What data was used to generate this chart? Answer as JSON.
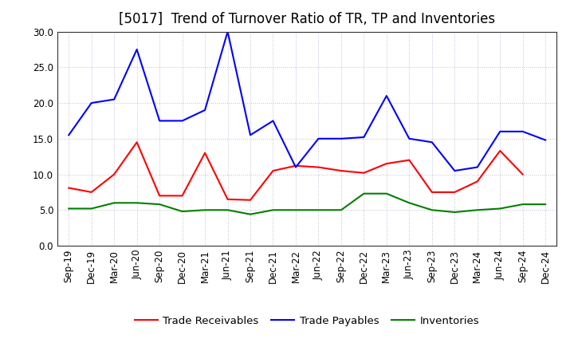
{
  "title": "[5017]  Trend of Turnover Ratio of TR, TP and Inventories",
  "xlabels": [
    "Sep-19",
    "Dec-19",
    "Mar-20",
    "Jun-20",
    "Sep-20",
    "Dec-20",
    "Mar-21",
    "Jun-21",
    "Sep-21",
    "Dec-21",
    "Mar-22",
    "Jun-22",
    "Sep-22",
    "Dec-22",
    "Mar-23",
    "Jun-23",
    "Sep-23",
    "Dec-23",
    "Mar-24",
    "Jun-24",
    "Sep-24",
    "Dec-24"
  ],
  "trade_receivables": [
    8.1,
    7.5,
    10.0,
    14.5,
    7.0,
    7.0,
    13.0,
    6.5,
    6.4,
    10.5,
    11.2,
    11.0,
    10.5,
    10.2,
    11.5,
    12.0,
    7.5,
    7.5,
    9.0,
    13.3,
    10.0,
    null
  ],
  "trade_payables": [
    15.5,
    20.0,
    20.5,
    27.5,
    17.5,
    17.5,
    19.0,
    30.0,
    15.5,
    17.5,
    11.0,
    15.0,
    15.0,
    15.2,
    21.0,
    15.0,
    14.5,
    10.5,
    11.0,
    16.0,
    16.0,
    14.8
  ],
  "inventories": [
    5.2,
    5.2,
    6.0,
    6.0,
    5.8,
    4.8,
    5.0,
    5.0,
    4.4,
    5.0,
    5.0,
    5.0,
    5.0,
    7.3,
    7.3,
    6.0,
    5.0,
    4.7,
    5.0,
    5.2,
    5.8,
    5.8
  ],
  "tr_color": "#ff0000",
  "tp_color": "#0000ff",
  "inv_color": "#008000",
  "ylim": [
    0,
    30.0
  ],
  "yticks": [
    0.0,
    5.0,
    10.0,
    15.0,
    20.0,
    25.0,
    30.0
  ],
  "legend_labels": [
    "Trade Receivables",
    "Trade Payables",
    "Inventories"
  ],
  "bg_color": "#ffffff",
  "grid_color": "#aaaacc",
  "title_fontsize": 12,
  "axis_fontsize": 8.5,
  "legend_fontsize": 9.5
}
